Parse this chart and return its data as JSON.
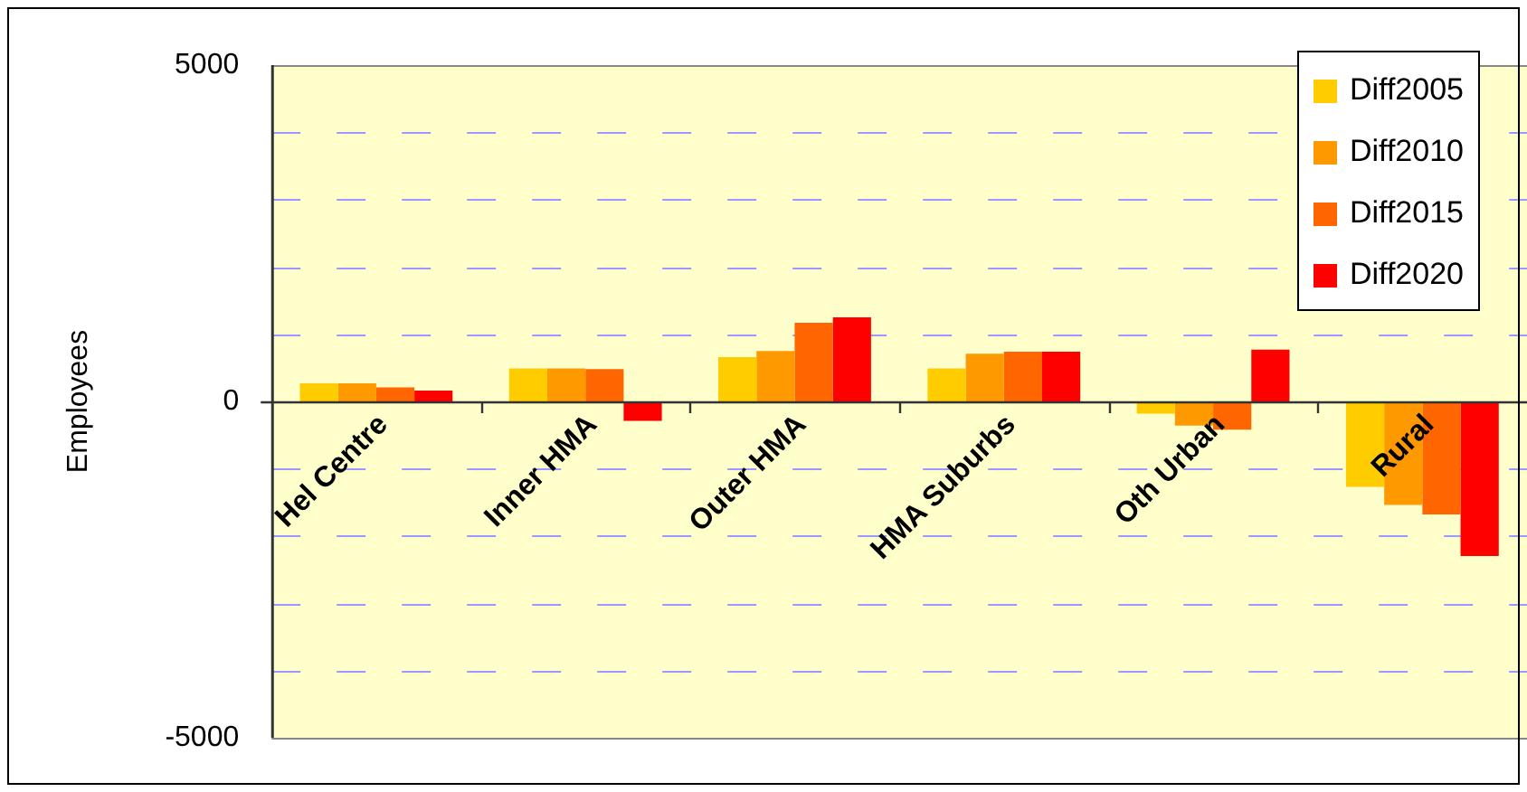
{
  "chart_data": {
    "type": "bar",
    "ylabel": "Employees",
    "categories": [
      "Hel Centre",
      "Inner HMA",
      "Outer HMA",
      "HMA Suburbs",
      "Oth Urban",
      "Rural"
    ],
    "series": [
      {
        "name": "Diff2005",
        "color": "#ffcc00",
        "values": [
          270,
          490,
          660,
          490,
          -180,
          -1270
        ]
      },
      {
        "name": "Diff2010",
        "color": "#ff9900",
        "values": [
          270,
          490,
          750,
          710,
          -360,
          -1540
        ]
      },
      {
        "name": "Diff2015",
        "color": "#ff6600",
        "values": [
          210,
          480,
          1170,
          740,
          -420,
          -1680
        ]
      },
      {
        "name": "Diff2020",
        "color": "#ff0000",
        "values": [
          160,
          -290,
          1250,
          740,
          770,
          -2300
        ]
      }
    ],
    "ylim": [
      -5000,
      5000
    ],
    "yticks": [
      -5000,
      {
        "value": -4000,
        "label": null
      },
      {
        "value": -3000,
        "label": null
      },
      {
        "value": -2000,
        "label": null
      },
      {
        "value": -1000,
        "label": null
      },
      0,
      {
        "value": 1000,
        "label": null
      },
      {
        "value": 2000,
        "label": null
      },
      {
        "value": 3000,
        "label": null
      },
      {
        "value": 4000,
        "label": null
      },
      5000
    ],
    "grid": "y",
    "legend": "top right"
  }
}
